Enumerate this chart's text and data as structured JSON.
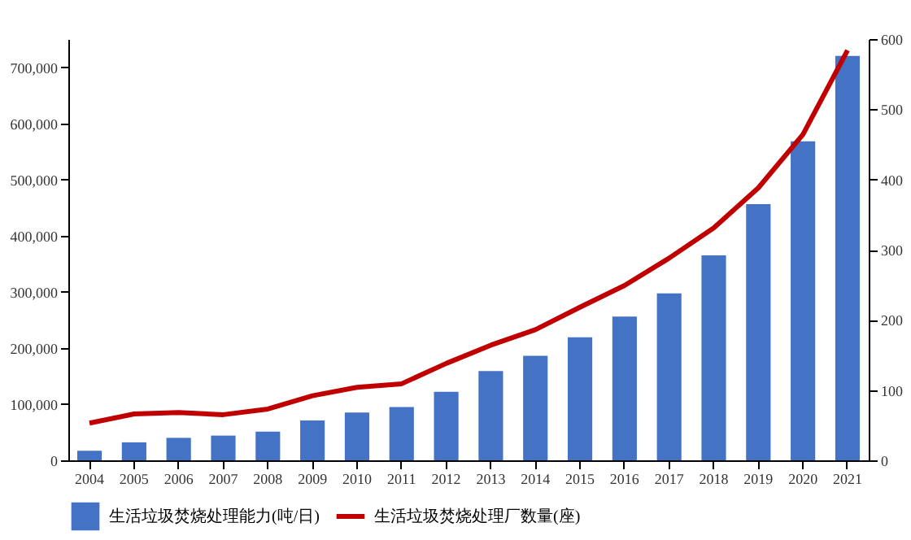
{
  "chart_data": {
    "type": "bar",
    "categories": [
      "2004",
      "2005",
      "2006",
      "2007",
      "2008",
      "2009",
      "2010",
      "2011",
      "2012",
      "2013",
      "2014",
      "2015",
      "2016",
      "2017",
      "2018",
      "2019",
      "2020",
      "2021"
    ],
    "series": [
      {
        "name": "生活垃圾焚烧处理能力(吨/日)",
        "color": "#4472c4",
        "values": [
          17000,
          32000,
          40000,
          44000,
          51000,
          71000,
          85000,
          95000,
          122000,
          159000,
          186000,
          219000,
          256000,
          297000,
          365000,
          456000,
          568000,
          720000
        ]
      },
      {
        "name": "生活垃圾焚烧处理厂数量(座)",
        "type": "line",
        "axis": "y2",
        "color": "#c00000",
        "values": [
          53,
          66,
          68,
          65,
          73,
          92,
          104,
          109,
          138,
          164,
          186,
          218,
          249,
          288,
          331,
          388,
          464,
          584
        ]
      }
    ],
    "ylim": [
      0,
      750000
    ],
    "yticks": [
      0,
      {
        "value": 100000,
        "label": "100,000"
      },
      {
        "value": 200000,
        "label": "200,000"
      },
      {
        "value": 300000,
        "label": "300,000"
      },
      {
        "value": 400000,
        "label": "400,000"
      },
      {
        "value": 500000,
        "label": "500,000"
      },
      {
        "value": 600000,
        "label": "600,000"
      },
      {
        "value": 700000,
        "label": "700,000"
      }
    ],
    "y2lim": [
      0,
      600
    ],
    "y2ticks": [
      0,
      100,
      200,
      300,
      400,
      500,
      600
    ],
    "grid": false,
    "legend": "bottom",
    "line_style": "solid",
    "marker": "none"
  }
}
